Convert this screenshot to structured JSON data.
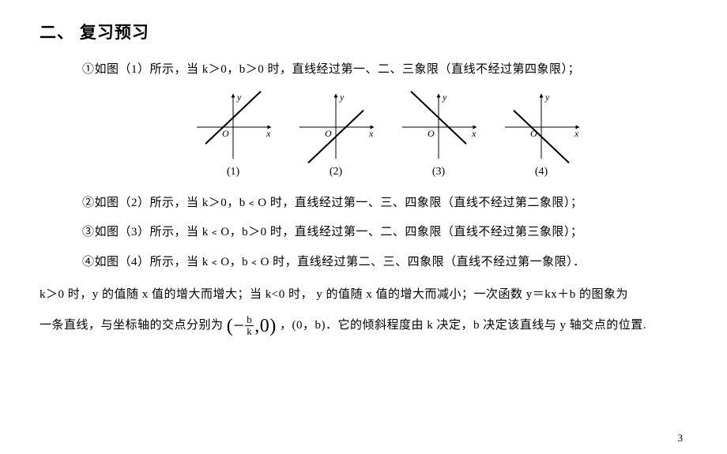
{
  "title": "二、 复习预习",
  "line1": "①如图（1）所示，当 k＞0，b＞0 时，直线经过第一、二、三象限（直线不经过第四象限）；",
  "line2": "②如图（2）所示，当 k＞0，b﹤O 时，直线经过第一、三、四象限（直线不经过第二象限）；",
  "line3": "③如图（3）所示，当 k﹤O，b＞0 时，直线经过第一、二、四象限（直线不经过第三象限）；",
  "line4": "④如图（4）所示，当 k﹤O，b﹤O 时，直线经过第二、三、四象限（直线不经过第一象限）．",
  "line5a": "k＞0 时，y 的值随 x 值的增大而增大；当 k<0 时， y 的值随 x 值的增大而减小；一次函数 y＝kx＋b 的图象为",
  "line5b_pre": "一条直线，与坐标轴的交点分别为",
  "frac_neg": "(−",
  "frac_num": "b",
  "frac_den": "k",
  "frac_post": ",0)",
  "line5b_post": "，(0，b)．它的倾斜程度由 k 决定，b 决定该直线与 y 轴交点的位置.",
  "charts": {
    "axis_color": "#000000",
    "line_color": "#000000",
    "line_width": 2,
    "axis_width": 1,
    "labels": [
      "(1)",
      "(2)",
      "(3)",
      "(4)"
    ],
    "axis_label_x": "x",
    "axis_label_y": "y",
    "origin_label": "O",
    "items": [
      {
        "slope": 1,
        "intercept_sign": 1
      },
      {
        "slope": 1,
        "intercept_sign": -1
      },
      {
        "slope": -1,
        "intercept_sign": 1
      },
      {
        "slope": -1,
        "intercept_sign": -1
      }
    ]
  },
  "page_number": "3"
}
